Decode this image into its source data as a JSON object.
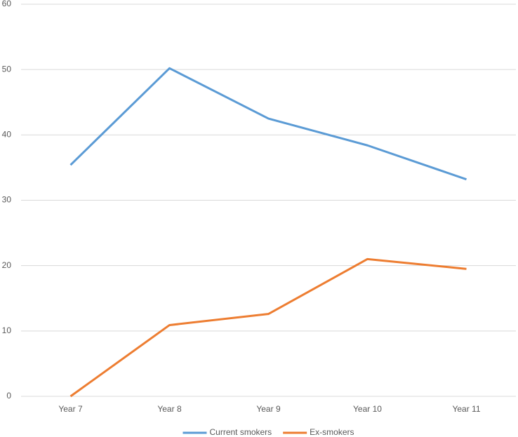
{
  "chart_data": {
    "type": "line",
    "categories": [
      "Year 7",
      "Year 8",
      "Year 9",
      "Year 10",
      "Year 11"
    ],
    "series": [
      {
        "name": "Current smokers",
        "color": "#5b9bd5",
        "values": [
          35.4,
          50.2,
          42.5,
          38.4,
          33.2
        ]
      },
      {
        "name": "Ex-smokers",
        "color": "#ed7d31",
        "values": [
          0,
          10.9,
          12.6,
          21.0,
          19.5
        ]
      }
    ],
    "ylim": [
      0,
      60
    ],
    "yticks": [
      0,
      10,
      20,
      30,
      40,
      50,
      60
    ],
    "grid": true,
    "legend": "bottom"
  }
}
